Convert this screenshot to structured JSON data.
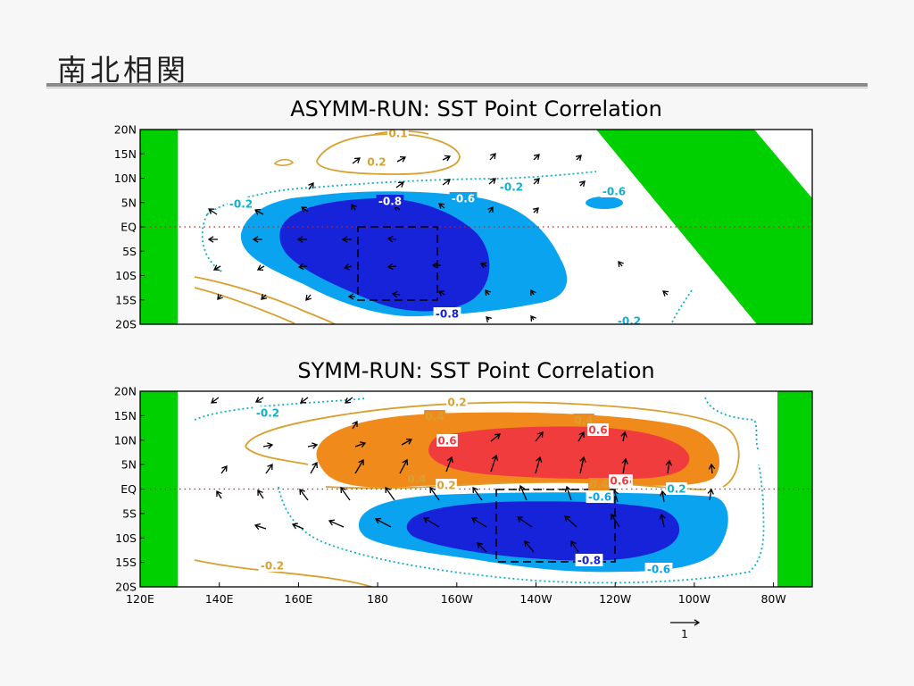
{
  "slide": {
    "title": "南北相関"
  },
  "colors": {
    "land": "#00d000",
    "neg_light": "#0aa3f0",
    "neg_mid": "#1f5fe6",
    "neg_dark": "#1623d8",
    "pos_light": "#f08a1a",
    "pos_dark": "#f03c3c",
    "contour_pos": "#d8a030",
    "contour_neg": "#10b0c8"
  },
  "chart_data": [
    {
      "type": "contour",
      "title": "ASYMM-RUN: SST Point Correlation",
      "x_range": [
        120,
        290
      ],
      "y_range": [
        -20,
        20
      ],
      "y_ticks": [
        "20N",
        "15N",
        "10N",
        "5N",
        "EQ",
        "5S",
        "10S",
        "15S",
        "20S"
      ],
      "shading_levels": [
        -0.8,
        -0.6
      ],
      "contour_labels": [
        "0.1",
        "0.2",
        "-0.2",
        "-0.8",
        "-0.6",
        "-0.2",
        "-0.6",
        "-0.8",
        "-0.2"
      ],
      "reference_box": {
        "lon": [
          180,
          200
        ],
        "lat": [
          -15,
          0
        ]
      },
      "land": "western land block and diagonal land band in the east"
    },
    {
      "type": "contour",
      "title": "SYMM-RUN: SST Point Correlation",
      "x_range": [
        120,
        290
      ],
      "y_range": [
        -20,
        20
      ],
      "x_ticks": [
        "120E",
        "140E",
        "160E",
        "180",
        "160W",
        "140W",
        "120W",
        "100W",
        "80W"
      ],
      "y_ticks": [
        "20N",
        "15N",
        "10N",
        "5N",
        "EQ",
        "5S",
        "10S",
        "15S",
        "20S"
      ],
      "shading_levels": [
        -0.8,
        -0.6,
        0.4,
        0.6
      ],
      "contour_labels": [
        "-0.2",
        "0.2",
        "0.4",
        "0.4",
        "0.6",
        "0.6",
        "0.6",
        "0.4",
        "0.4",
        "0.6",
        "0.2",
        "-0.6",
        "0.2",
        "-0.8",
        "-0.6",
        "-0.2"
      ],
      "reference_box": {
        "lon": [
          210,
          240
        ],
        "lat": [
          -15,
          0
        ]
      },
      "vector_reference": {
        "value": "1"
      }
    }
  ]
}
